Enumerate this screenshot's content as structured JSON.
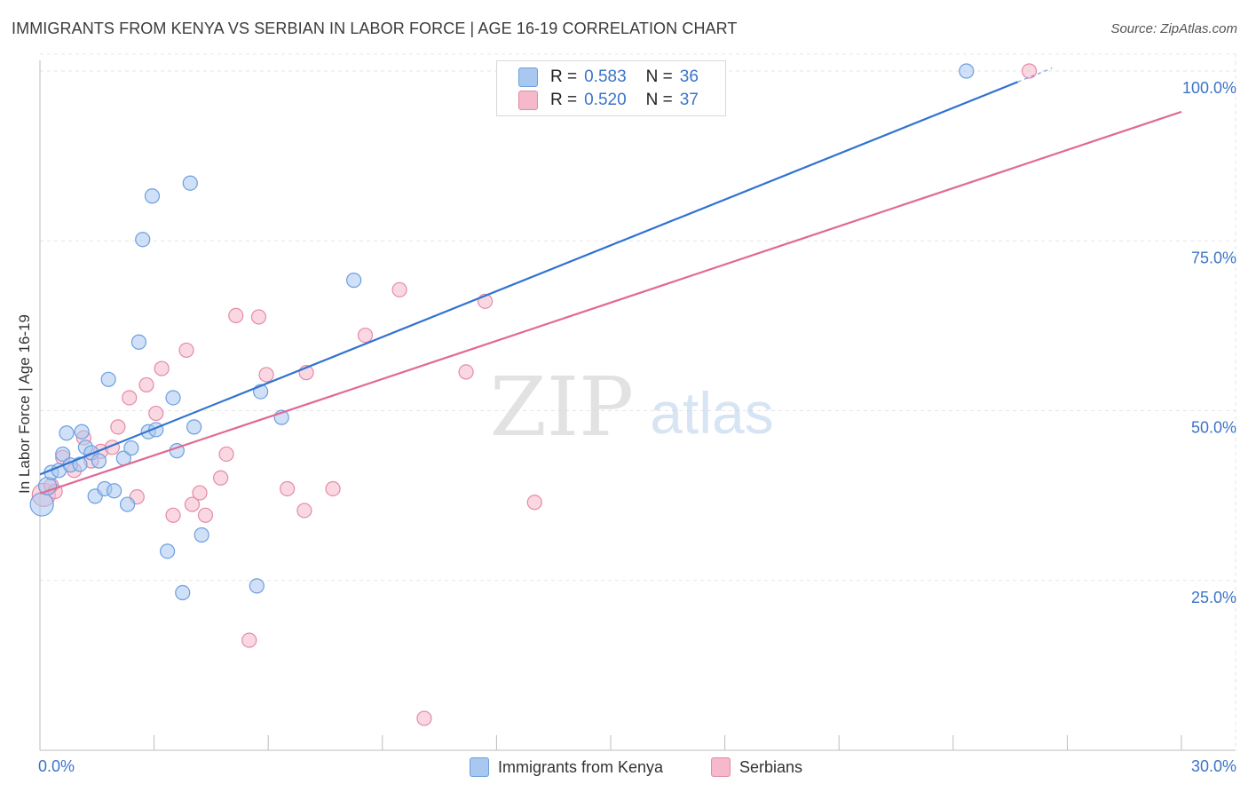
{
  "header": {
    "title": "IMMIGRANTS FROM KENYA VS SERBIAN IN LABOR FORCE | AGE 16-19 CORRELATION CHART",
    "source": "Source: ZipAtlas.com"
  },
  "watermark": {
    "zip": "ZIP",
    "atlas": "atlas"
  },
  "legend_top": [
    {
      "r_label": "R =",
      "r_value": "0.583",
      "n_label": "N =",
      "n_value": "36"
    },
    {
      "r_label": "R =",
      "r_value": "0.520",
      "n_label": "N =",
      "n_value": "37"
    }
  ],
  "legend_bottom": [
    {
      "label": "Immigrants from Kenya"
    },
    {
      "label": "Serbians"
    }
  ],
  "colors": {
    "kenya_fill": "#a9c8f0",
    "kenya_stroke": "#6d9ee0",
    "kenya_line": "#2f73cf",
    "serbian_fill": "#f6b8cb",
    "serbian_stroke": "#e48aa6",
    "serbian_line": "#e06a94",
    "axis_text": "#3a74c9",
    "grid": "#e6e6e6"
  },
  "chart_data": {
    "type": "scatter",
    "title": "IMMIGRANTS FROM KENYA VS SERBIAN IN LABOR FORCE | AGE 16-19 CORRELATION CHART",
    "xlabel": "",
    "ylabel": "In Labor Force | Age 16-19",
    "xlim": [
      0,
      30
    ],
    "ylim": [
      0,
      102.5
    ],
    "x_tick_labels": [
      "0.0%",
      "30.0%"
    ],
    "y_ticks": [
      25,
      50,
      75,
      100
    ],
    "y_tick_labels": [
      "25.0%",
      "50.0%",
      "75.0%",
      "100.0%"
    ],
    "grid": true,
    "legend_position": "top-center",
    "series": [
      {
        "name": "Immigrants from Kenya",
        "r": 0.583,
        "n": 36,
        "trend": {
          "x": [
            0,
            25.7
          ],
          "y": [
            40.6,
            98.4
          ],
          "dashed_extension_to_x": 26.6
        },
        "points": [
          {
            "x": 0.05,
            "y": 36.2,
            "s": "large"
          },
          {
            "x": 0.2,
            "y": 38.9,
            "s": "medium"
          },
          {
            "x": 0.3,
            "y": 40.9,
            "s": "normal"
          },
          {
            "x": 0.5,
            "y": 41.2,
            "s": "normal"
          },
          {
            "x": 0.6,
            "y": 43.6,
            "s": "normal"
          },
          {
            "x": 0.7,
            "y": 46.7,
            "s": "normal"
          },
          {
            "x": 0.8,
            "y": 42.0,
            "s": "normal"
          },
          {
            "x": 1.05,
            "y": 42.1,
            "s": "normal"
          },
          {
            "x": 1.1,
            "y": 46.9,
            "s": "normal"
          },
          {
            "x": 1.2,
            "y": 44.6,
            "s": "normal"
          },
          {
            "x": 1.35,
            "y": 43.8,
            "s": "normal"
          },
          {
            "x": 1.45,
            "y": 37.4,
            "s": "normal"
          },
          {
            "x": 1.55,
            "y": 42.6,
            "s": "normal"
          },
          {
            "x": 1.7,
            "y": 38.5,
            "s": "normal"
          },
          {
            "x": 1.8,
            "y": 54.6,
            "s": "normal"
          },
          {
            "x": 1.95,
            "y": 38.2,
            "s": "normal"
          },
          {
            "x": 2.2,
            "y": 43.0,
            "s": "normal"
          },
          {
            "x": 2.3,
            "y": 36.2,
            "s": "normal"
          },
          {
            "x": 2.4,
            "y": 44.5,
            "s": "normal"
          },
          {
            "x": 2.6,
            "y": 60.1,
            "s": "normal"
          },
          {
            "x": 2.7,
            "y": 75.2,
            "s": "normal"
          },
          {
            "x": 2.85,
            "y": 46.9,
            "s": "normal"
          },
          {
            "x": 2.95,
            "y": 81.6,
            "s": "normal"
          },
          {
            "x": 3.05,
            "y": 47.2,
            "s": "normal"
          },
          {
            "x": 3.35,
            "y": 29.3,
            "s": "normal"
          },
          {
            "x": 3.5,
            "y": 51.9,
            "s": "normal"
          },
          {
            "x": 3.6,
            "y": 44.1,
            "s": "normal"
          },
          {
            "x": 3.75,
            "y": 23.2,
            "s": "normal"
          },
          {
            "x": 3.95,
            "y": 83.5,
            "s": "normal"
          },
          {
            "x": 4.05,
            "y": 47.6,
            "s": "normal"
          },
          {
            "x": 4.25,
            "y": 31.7,
            "s": "normal"
          },
          {
            "x": 5.7,
            "y": 24.2,
            "s": "normal"
          },
          {
            "x": 5.8,
            "y": 52.8,
            "s": "normal"
          },
          {
            "x": 6.35,
            "y": 49.0,
            "s": "normal"
          },
          {
            "x": 8.25,
            "y": 69.2,
            "s": "normal"
          },
          {
            "x": 24.35,
            "y": 100.0,
            "s": "normal"
          }
        ]
      },
      {
        "name": "Serbians",
        "r": 0.52,
        "n": 37,
        "trend": {
          "x": [
            0,
            30
          ],
          "y": [
            37.8,
            94.0
          ]
        },
        "points": [
          {
            "x": 0.1,
            "y": 37.6,
            "s": "large"
          },
          {
            "x": 0.3,
            "y": 39.0,
            "s": "normal"
          },
          {
            "x": 0.4,
            "y": 38.1,
            "s": "normal"
          },
          {
            "x": 0.6,
            "y": 43.1,
            "s": "normal"
          },
          {
            "x": 0.9,
            "y": 41.2,
            "s": "normal"
          },
          {
            "x": 1.15,
            "y": 46.0,
            "s": "normal"
          },
          {
            "x": 1.35,
            "y": 42.6,
            "s": "normal"
          },
          {
            "x": 1.6,
            "y": 44.0,
            "s": "normal"
          },
          {
            "x": 1.9,
            "y": 44.6,
            "s": "normal"
          },
          {
            "x": 2.05,
            "y": 47.6,
            "s": "normal"
          },
          {
            "x": 2.35,
            "y": 51.9,
            "s": "normal"
          },
          {
            "x": 2.55,
            "y": 37.3,
            "s": "normal"
          },
          {
            "x": 2.8,
            "y": 53.8,
            "s": "normal"
          },
          {
            "x": 3.05,
            "y": 49.6,
            "s": "normal"
          },
          {
            "x": 3.2,
            "y": 56.2,
            "s": "normal"
          },
          {
            "x": 3.5,
            "y": 34.6,
            "s": "normal"
          },
          {
            "x": 3.85,
            "y": 58.9,
            "s": "normal"
          },
          {
            "x": 4.0,
            "y": 36.2,
            "s": "normal"
          },
          {
            "x": 4.2,
            "y": 37.9,
            "s": "normal"
          },
          {
            "x": 4.35,
            "y": 34.6,
            "s": "normal"
          },
          {
            "x": 4.75,
            "y": 40.1,
            "s": "normal"
          },
          {
            "x": 4.9,
            "y": 43.6,
            "s": "normal"
          },
          {
            "x": 5.15,
            "y": 64.0,
            "s": "normal"
          },
          {
            "x": 5.5,
            "y": 16.2,
            "s": "normal"
          },
          {
            "x": 5.75,
            "y": 63.8,
            "s": "normal"
          },
          {
            "x": 5.95,
            "y": 55.3,
            "s": "normal"
          },
          {
            "x": 6.5,
            "y": 38.5,
            "s": "normal"
          },
          {
            "x": 6.95,
            "y": 35.3,
            "s": "normal"
          },
          {
            "x": 7.0,
            "y": 55.6,
            "s": "normal"
          },
          {
            "x": 7.7,
            "y": 38.5,
            "s": "normal"
          },
          {
            "x": 8.55,
            "y": 61.1,
            "s": "normal"
          },
          {
            "x": 9.45,
            "y": 67.8,
            "s": "normal"
          },
          {
            "x": 10.1,
            "y": 4.7,
            "s": "normal"
          },
          {
            "x": 11.2,
            "y": 55.7,
            "s": "normal"
          },
          {
            "x": 11.7,
            "y": 66.1,
            "s": "normal"
          },
          {
            "x": 13.0,
            "y": 36.5,
            "s": "normal"
          },
          {
            "x": 26.0,
            "y": 100.0,
            "s": "normal"
          }
        ]
      }
    ]
  }
}
